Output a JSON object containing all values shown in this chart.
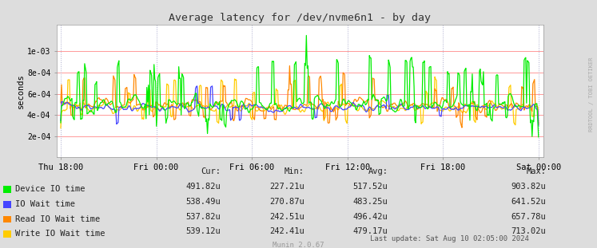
{
  "title": "Average latency for /dev/nvme6n1 - by day",
  "ylabel": "seconds",
  "background_color": "#DDDDDD",
  "plot_bg_color": "#FFFFFF",
  "hline_color": "#FF9999",
  "vline_color": "#AAAACC",
  "series_colors": [
    "#00EE00",
    "#4444FF",
    "#FF8800",
    "#FFCC00"
  ],
  "series_labels": [
    "Device IO time",
    "IO Wait time",
    "Read IO Wait time",
    "Write IO Wait time"
  ],
  "legend_cur": [
    "491.82u",
    "538.49u",
    "537.82u",
    "539.12u"
  ],
  "legend_min": [
    "227.21u",
    "270.87u",
    "242.51u",
    "242.41u"
  ],
  "legend_avg": [
    "517.52u",
    "483.25u",
    "496.42u",
    "479.17u"
  ],
  "legend_max": [
    "903.82u",
    "641.52u",
    "657.78u",
    "713.02u"
  ],
  "last_update": "Last update: Sat Aug 10 02:05:00 2024",
  "munin_version": "Munin 2.0.67",
  "watermark": "RRDTOOL / TOBI OETIKER",
  "x_tick_labels": [
    "Thu 18:00",
    "Fri 00:00",
    "Fri 06:00",
    "Fri 12:00",
    "Fri 18:00",
    "Sat 00:00"
  ],
  "ytick_vals": [
    0.0002,
    0.0004,
    0.0006,
    0.0008,
    0.001
  ],
  "ytick_labels": [
    "2e-04",
    "4e-04",
    "6e-04",
    "8e-04",
    "1e-03"
  ],
  "ylim": [
    0,
    0.00125
  ],
  "n_points": 600,
  "base_latency": 0.00048,
  "seed": 12345
}
